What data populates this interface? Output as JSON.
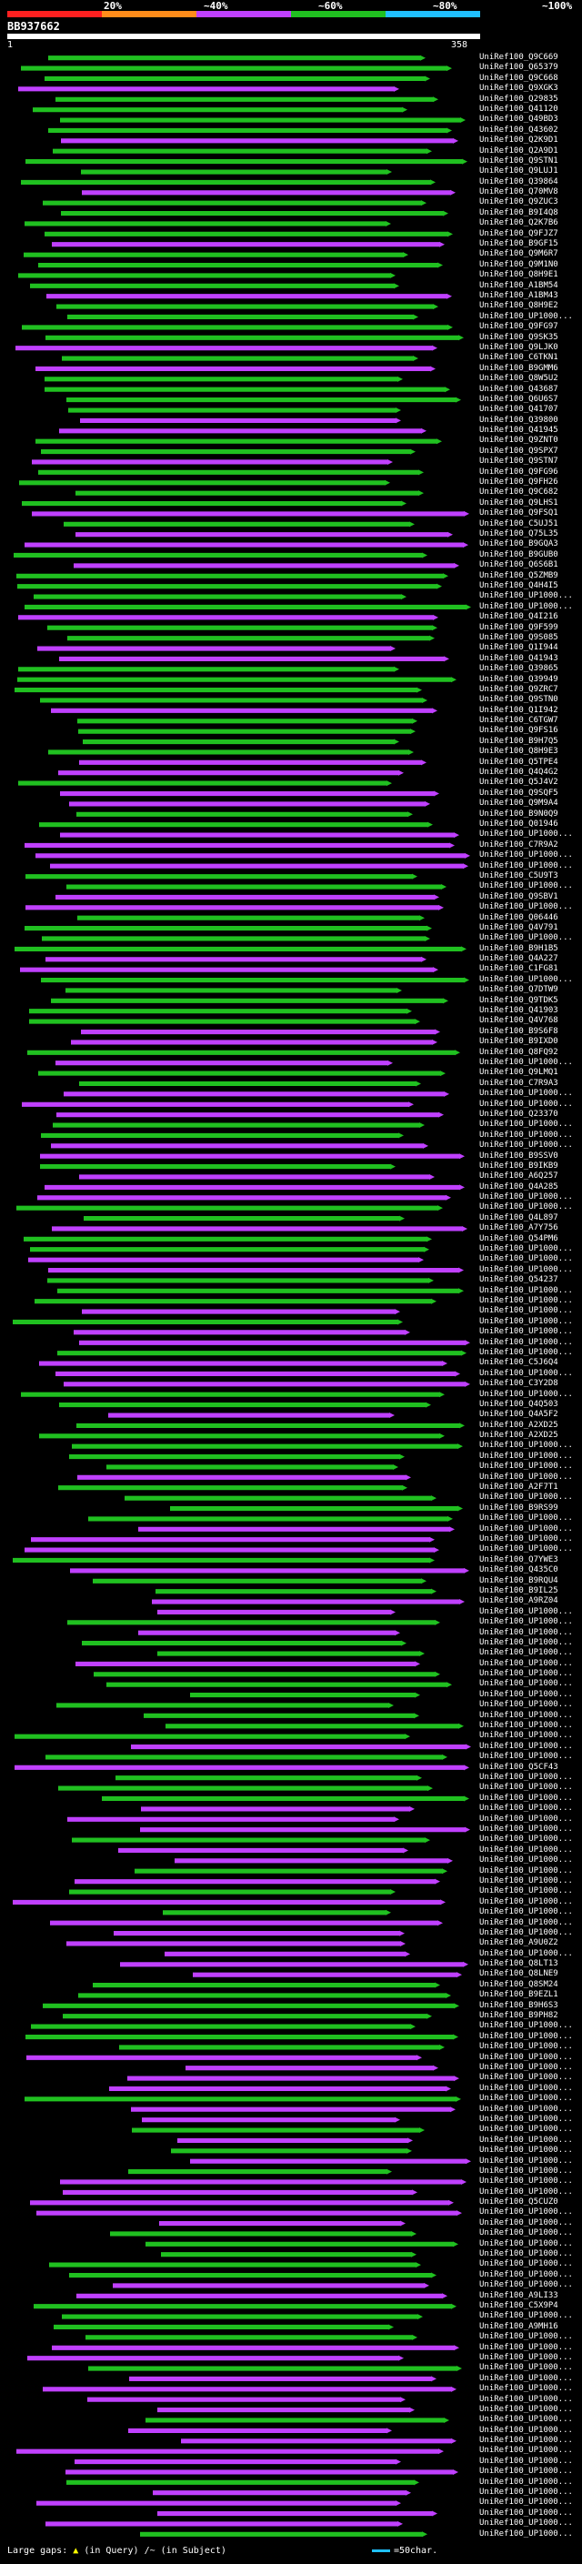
{
  "title": "BB937662",
  "scale": {
    "labels": [
      "20%",
      "~40%",
      "~60%",
      "~80%",
      "~100%"
    ],
    "colors": [
      "#ff2020",
      "#ff8c1a",
      "#c040ff",
      "#20c020",
      "#20c0ff"
    ]
  },
  "ruler": {
    "start": "1",
    "end": "358"
  },
  "legend": {
    "prefix": "Large gaps:",
    "query_gap": "(in Query)",
    "subject_gap": "(in Subject)",
    "scale": "=50char."
  },
  "chart_data": {
    "type": "alignment-overview",
    "query": {
      "id": "BB937662",
      "length": 358
    },
    "identity_bins": [
      "20%",
      "~40%",
      "~60%",
      "~80%",
      "~100%"
    ],
    "hits": [
      "UniRef100_Q9C669",
      "UniRef100_Q65379",
      "UniRef100_Q9C668",
      "UniRef100_Q9XGK3",
      "UniRef100_Q29835",
      "UniRef100_Q41120",
      "UniRef100_Q49BD3",
      "UniRef100_Q43602",
      "UniRef100_Q2K9D1",
      "UniRef100_Q2A9D1",
      "UniRef100_Q9STN1",
      "UniRef100_Q9LUJ1",
      "UniRef100_Q39864",
      "UniRef100_Q70MV8",
      "UniRef100_Q9ZUC3",
      "UniRef100_B9I4Q8",
      "UniRef100_Q2K7B6",
      "UniRef100_Q9FJZ7",
      "UniRef100_B9GF15",
      "UniRef100_Q9M6R7",
      "UniRef100_Q9M1N0",
      "UniRef100_Q8H9E1",
      "UniRef100_A1BM54",
      "UniRef100_A1BM43",
      "UniRef100_Q8H9E2",
      "UniRef100_UP1000...",
      "UniRef100_Q9FG97",
      "UniRef100_Q9SK35",
      "UniRef100_Q9LJK0",
      "UniRef100_C6TKN1",
      "UniRef100_B9GMM6",
      "UniRef100_Q8W5U2",
      "UniRef100_Q43687",
      "UniRef100_Q6U6S7",
      "UniRef100_Q41707",
      "UniRef100_Q39800",
      "UniRef100_Q41945",
      "UniRef100_Q9ZNT0",
      "UniRef100_Q9SPX7",
      "UniRef100_Q9STN7",
      "UniRef100_Q9FG96",
      "UniRef100_Q9FH26",
      "UniRef100_Q9C682",
      "UniRef100_Q9LHS1",
      "UniRef100_Q9FSQ1",
      "UniRef100_C5UJ51",
      "UniRef100_Q75L35",
      "UniRef100_B9GQA3",
      "UniRef100_B9GUB0",
      "UniRef100_Q6S6B1",
      "UniRef100_Q5ZMB9",
      "UniRef100_Q4H4I5",
      "UniRef100_UP1000...",
      "UniRef100_UP1000...",
      "UniRef100_Q4I216",
      "UniRef100_Q9F599",
      "UniRef100_Q9S085",
      "UniRef100_Q1I944",
      "UniRef100_Q41943",
      "UniRef100_Q39865",
      "UniRef100_Q39949",
      "UniRef100_Q9ZRC7",
      "UniRef100_Q9STN0",
      "UniRef100_Q1I942",
      "UniRef100_C6TGW7",
      "UniRef100_Q9FS16",
      "UniRef100_B9H7Q5",
      "UniRef100_Q8H9E3",
      "UniRef100_Q5TPE4",
      "UniRef100_Q4Q4G2",
      "UniRef100_Q5J4V2",
      "UniRef100_Q9SQF5",
      "UniRef100_Q9M9A4",
      "UniRef100_B9N0Q9",
      "UniRef100_Q01946",
      "UniRef100_UP1000...",
      "UniRef100_C7R9A2",
      "UniRef100_UP1000...",
      "UniRef100_UP1000...",
      "UniRef100_C5U9T3",
      "UniRef100_UP1000...",
      "UniRef100_Q9SBV1",
      "UniRef100_UP1000...",
      "UniRef100_Q06446",
      "UniRef100_Q4V791",
      "UniRef100_UP1000...",
      "UniRef100_B9H1B5",
      "UniRef100_Q4A227",
      "UniRef100_C1FG81",
      "UniRef100_UP1000...",
      "UniRef100_Q7DTW9",
      "UniRef100_Q9TDK5",
      "UniRef100_Q41903",
      "UniRef100_Q4V768",
      "UniRef100_B9S6F8",
      "UniRef100_B9IXD0",
      "UniRef100_Q8FQ92",
      "UniRef100_UP1000...",
      "UniRef100_Q9LMQ1",
      "UniRef100_C7R9A3",
      "UniRef100_UP1000...",
      "UniRef100_UP1000...",
      "UniRef100_Q23370",
      "UniRef100_UP1000...",
      "UniRef100_UP1000...",
      "UniRef100_UP1000...",
      "UniRef100_B9SSV0",
      "UniRef100_B9IKB9",
      "UniRef100_A6Q257",
      "UniRef100_Q4A285",
      "UniRef100_UP1000...",
      "UniRef100_UP1000...",
      "UniRef100_Q4L897",
      "UniRef100_A7Y756",
      "UniRef100_Q54PM6",
      "UniRef100_UP1000...",
      "UniRef100_UP1000...",
      "UniRef100_UP1000...",
      "UniRef100_Q54237",
      "UniRef100_UP1000...",
      "UniRef100_UP1000...",
      "UniRef100_UP1000...",
      "UniRef100_UP1000...",
      "UniRef100_UP1000...",
      "UniRef100_UP1000...",
      "UniRef100_UP1000...",
      "UniRef100_C5J6Q4",
      "UniRef100_UP1000...",
      "UniRef100_C3Y2D8",
      "UniRef100_UP1000...",
      "UniRef100_Q4Q503",
      "UniRef100_Q4A5F2",
      "UniRef100_A2XD25",
      "UniRef100_A2XD25",
      "UniRef100_UP1000...",
      "UniRef100_UP1000...",
      "UniRef100_UP1000...",
      "UniRef100_UP1000...",
      "UniRef100_A2F7T1",
      "UniRef100_UP1000...",
      "UniRef100_B9RS99",
      "UniRef100_UP1000...",
      "UniRef100_UP1000...",
      "UniRef100_UP1000...",
      "UniRef100_UP1000...",
      "UniRef100_Q7YWE3",
      "UniRef100_Q435C0",
      "UniRef100_B9RQU4",
      "UniRef100_B9IL25",
      "UniRef100_A9RZ04",
      "UniRef100_UP1000...",
      "UniRef100_UP1000...",
      "UniRef100_UP1000...",
      "UniRef100_UP1000...",
      "UniRef100_UP1000...",
      "UniRef100_UP1000...",
      "UniRef100_UP1000...",
      "UniRef100_UP1000...",
      "UniRef100_UP1000...",
      "UniRef100_UP1000...",
      "UniRef100_UP1000...",
      "UniRef100_UP1000...",
      "UniRef100_UP1000...",
      "UniRef100_UP1000...",
      "UniRef100_UP1000...",
      "UniRef100_Q5CF43",
      "UniRef100_UP1000...",
      "UniRef100_UP1000...",
      "UniRef100_UP1000...",
      "UniRef100_UP1000...",
      "UniRef100_UP1000...",
      "UniRef100_UP1000...",
      "UniRef100_UP1000...",
      "UniRef100_UP1000...",
      "UniRef100_UP1000...",
      "UniRef100_UP1000...",
      "UniRef100_UP1000...",
      "UniRef100_UP1000...",
      "UniRef100_UP1000...",
      "UniRef100_UP1000...",
      "UniRef100_UP1000...",
      "UniRef100_UP1000...",
      "UniRef100_A9U0Z2",
      "UniRef100_UP1000...",
      "UniRef100_Q8LT13",
      "UniRef100_Q8LNE9",
      "UniRef100_Q8SM24",
      "UniRef100_B9EZL1",
      "UniRef100_B9H6S3",
      "UniRef100_B9PH82",
      "UniRef100_UP1000...",
      "UniRef100_UP1000...",
      "UniRef100_UP1000...",
      "UniRef100_UP1000...",
      "UniRef100_UP1000...",
      "UniRef100_UP1000...",
      "UniRef100_UP1000...",
      "UniRef100_UP1000...",
      "UniRef100_UP1000...",
      "UniRef100_UP1000...",
      "UniRef100_UP1000...",
      "UniRef100_UP1000...",
      "UniRef100_UP1000...",
      "UniRef100_UP1000...",
      "UniRef100_UP1000...",
      "UniRef100_UP1000...",
      "UniRef100_UP1000...",
      "UniRef100_Q5CUZ0",
      "UniRef100_UP1000...",
      "UniRef100_UP1000...",
      "UniRef100_UP1000...",
      "UniRef100_UP1000...",
      "UniRef100_UP1000...",
      "UniRef100_UP1000...",
      "UniRef100_UP1000...",
      "UniRef100_UP1000...",
      "UniRef100_A9LI33",
      "UniRef100_C5X9P4",
      "UniRef100_UP1000...",
      "UniRef100_A9MH16",
      "UniRef100_UP1000...",
      "UniRef100_UP1000...",
      "UniRef100_UP1000...",
      "UniRef100_UP1000...",
      "UniRef100_UP1000...",
      "UniRef100_UP1000...",
      "UniRef100_UP1000...",
      "UniRef100_UP1000...",
      "UniRef100_UP1000...",
      "UniRef100_UP1000...",
      "UniRef100_UP1000...",
      "UniRef100_UP1000...",
      "UniRef100_UP1000...",
      "UniRef100_UP1000...",
      "UniRef100_UP1000...",
      "UniRef100_UP1000...",
      "UniRef100_UP1000...",
      "UniRef100_UP1000...",
      "UniRef100_UP1000...",
      "UniRef100_UP1000..."
    ]
  }
}
